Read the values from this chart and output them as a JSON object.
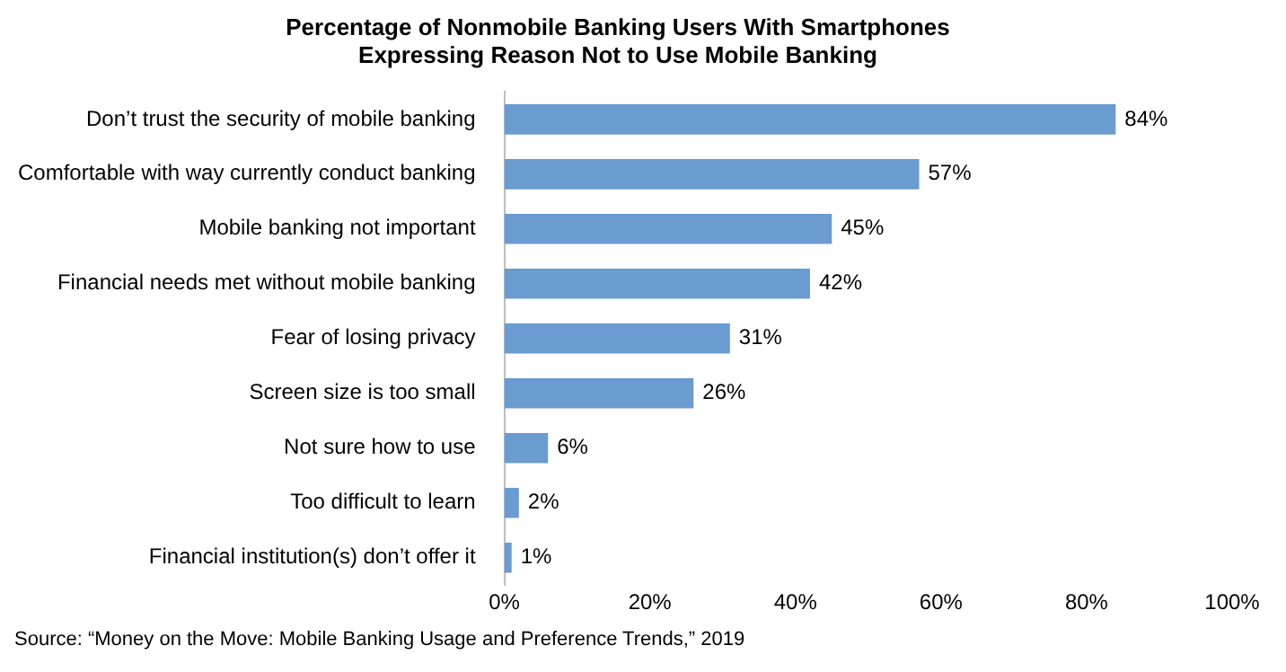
{
  "chart_data": {
    "type": "bar",
    "orientation": "horizontal",
    "title": "Percentage of Nonmobile Banking Users With Smartphones\nExpressing Reason Not to Use Mobile Banking",
    "categories": [
      "Don’t trust the security of mobile banking",
      "Comfortable with way currently conduct banking",
      "Mobile banking not important",
      "Financial needs met without mobile banking",
      "Fear of losing privacy",
      "Screen size is too small",
      "Not sure how to use",
      "Too difficult to learn",
      "Financial institution(s) don’t offer it"
    ],
    "values": [
      84,
      57,
      45,
      42,
      31,
      26,
      6,
      2,
      1
    ],
    "value_labels": [
      "84%",
      "57%",
      "45%",
      "42%",
      "31%",
      "26%",
      "6%",
      "2%",
      "1%"
    ],
    "color": "#6a9bd1",
    "xlim": [
      0,
      100
    ],
    "xticks": [
      {
        "value": 0,
        "label": "0%"
      },
      {
        "value": 20,
        "label": "20%"
      },
      {
        "value": 40,
        "label": "40%"
      },
      {
        "value": 60,
        "label": "60%"
      },
      {
        "value": 80,
        "label": "80%"
      },
      {
        "value": 100,
        "label": "100%"
      }
    ],
    "grid": false,
    "legend": false,
    "annotations": [
      "Source: “Money on the Move: Mobile Banking Usage and Preference Trends,” 2019"
    ]
  }
}
